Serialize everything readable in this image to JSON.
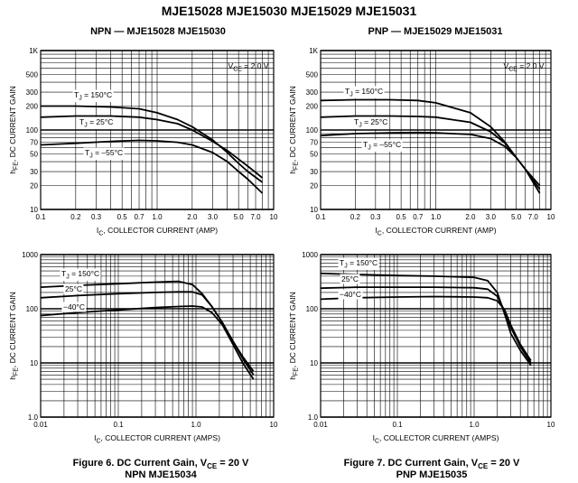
{
  "page": {
    "title": "MJE15028 MJE15030 MJE15029 MJE15031",
    "subtitle_left": "NPN — MJE15028 MJE15030",
    "subtitle_right": "PNP — MJE15029 MJE15031",
    "caption_left_line1": "Figure 6. DC Current Gain, V",
    "caption_left_sub": "CE",
    "caption_left_tail": " = 20 V",
    "caption_left_line2": "NPN MJE15034",
    "caption_right_line1": "Figure 7. DC Current Gain, V",
    "caption_right_sub": "CE",
    "caption_right_tail": " = 20 V",
    "caption_right_line2": "PNP MJE15035"
  },
  "chart_data": [
    {
      "type": "line",
      "scale": "log-log",
      "xlim": [
        0.1,
        10
      ],
      "ylim": [
        10,
        1000
      ],
      "x_ticks": [
        0.1,
        0.2,
        0.3,
        0.5,
        0.7,
        1.0,
        2.0,
        3.0,
        5.0,
        7.0,
        10
      ],
      "x_tick_labels": [
        "0.1",
        "0.2",
        "0.3",
        "0.5",
        "0.7",
        "1.0",
        "2.0",
        "3.0",
        "5.0",
        "7.0",
        "10"
      ],
      "y_ticks": [
        10,
        20,
        30,
        50,
        70,
        100,
        200,
        300,
        500,
        1000
      ],
      "y_tick_labels": [
        "10",
        "20",
        "30",
        "50",
        "70",
        "100",
        "200",
        "300",
        "500",
        "1K"
      ],
      "xlabel": "I",
      "xlabel_sub": "C",
      "xlabel_tail": ", COLLECTOR CURRENT (AMP)",
      "ylabel": "h",
      "ylabel_sub": "FE",
      "ylabel_tail": ", DC CURRENT GAIN",
      "condition": "V",
      "condition_sub": "CE",
      "condition_tail": " = 2.0 V",
      "grid": true,
      "series": [
        {
          "name": "T",
          "name_sub": "J",
          "name_tail": " = 150°C",
          "x": [
            0.1,
            0.2,
            0.4,
            0.7,
            1.0,
            1.5,
            2.0,
            3.0,
            4.0,
            5.0,
            6.0,
            8.0
          ],
          "y": [
            200,
            200,
            195,
            185,
            165,
            135,
            110,
            75,
            52,
            38,
            30,
            22
          ]
        },
        {
          "name": "T",
          "name_sub": "J",
          "name_tail": " = 25°C",
          "x": [
            0.1,
            0.2,
            0.4,
            0.7,
            1.0,
            1.5,
            2.0,
            3.0,
            4.0,
            5.0,
            6.0,
            8.0
          ],
          "y": [
            145,
            150,
            150,
            145,
            135,
            120,
            100,
            72,
            55,
            43,
            35,
            25
          ]
        },
        {
          "name": "T",
          "name_sub": "J",
          "name_tail": " = –55°C",
          "x": [
            0.1,
            0.2,
            0.4,
            0.7,
            1.0,
            1.5,
            2.0,
            3.0,
            4.0,
            5.0,
            6.0,
            8.0
          ],
          "y": [
            65,
            68,
            72,
            74,
            73,
            70,
            65,
            52,
            40,
            30,
            24,
            16
          ]
        }
      ]
    },
    {
      "type": "line",
      "scale": "log-log",
      "xlim": [
        0.1,
        10
      ],
      "ylim": [
        10,
        1000
      ],
      "x_ticks": [
        0.1,
        0.2,
        0.3,
        0.5,
        0.7,
        1.0,
        2.0,
        3.0,
        5.0,
        7.0,
        10
      ],
      "x_tick_labels": [
        "0.1",
        "0.2",
        "0.3",
        "0.5",
        "0.7",
        "1.0",
        "2.0",
        "3.0",
        "5.0",
        "7.0",
        "10"
      ],
      "y_ticks": [
        10,
        20,
        30,
        50,
        70,
        100,
        200,
        300,
        500,
        1000
      ],
      "y_tick_labels": [
        "10",
        "20",
        "30",
        "50",
        "70",
        "100",
        "200",
        "300",
        "500",
        "1K"
      ],
      "xlabel": "I",
      "xlabel_sub": "C",
      "xlabel_tail": ", COLLECTOR CURRENT (AMP)",
      "ylabel": "h",
      "ylabel_sub": "FE",
      "ylabel_tail": ", DC CURRENT GAIN",
      "condition": "V",
      "condition_sub": "CE",
      "condition_tail": " = 2.0 V",
      "grid": true,
      "series": [
        {
          "name": "T",
          "name_sub": "J",
          "name_tail": " = 150°C",
          "x": [
            0.1,
            0.2,
            0.4,
            0.7,
            1.0,
            2.0,
            3.0,
            4.0,
            5.0,
            6.0,
            8.0
          ],
          "y": [
            235,
            240,
            240,
            235,
            220,
            165,
            110,
            70,
            45,
            32,
            20
          ]
        },
        {
          "name": "T",
          "name_sub": "J",
          "name_tail": " = 25°C",
          "x": [
            0.1,
            0.2,
            0.4,
            0.7,
            1.0,
            2.0,
            3.0,
            4.0,
            5.0,
            6.0,
            8.0
          ],
          "y": [
            145,
            150,
            150,
            148,
            145,
            125,
            95,
            68,
            45,
            32,
            18
          ]
        },
        {
          "name": "T",
          "name_sub": "J",
          "name_tail": " = –55°C",
          "x": [
            0.1,
            0.2,
            0.4,
            0.7,
            1.0,
            2.0,
            3.0,
            4.0,
            5.0,
            6.0,
            8.0
          ],
          "y": [
            85,
            90,
            92,
            93,
            92,
            88,
            78,
            62,
            45,
            32,
            16
          ]
        }
      ]
    },
    {
      "type": "line",
      "scale": "log-log",
      "xlim": [
        0.01,
        10
      ],
      "ylim": [
        1.0,
        1000
      ],
      "x_ticks": [
        0.01,
        0.1,
        1.0,
        10
      ],
      "x_tick_labels": [
        "0.01",
        "0.1",
        "1.0",
        "10"
      ],
      "y_ticks": [
        1,
        10,
        100,
        1000
      ],
      "y_tick_labels": [
        "1.0",
        "10",
        "100",
        "1000"
      ],
      "xlabel": "I",
      "xlabel_sub": "C",
      "xlabel_tail": ", COLLECTOR CURRENT (AMPS)",
      "ylabel": "h",
      "ylabel_sub": "FE",
      "ylabel_tail": ", DC CURRENT GAIN",
      "grid": true,
      "series": [
        {
          "name": "T",
          "name_sub": "J",
          "name_tail": " = 150°C",
          "x": [
            0.01,
            0.03,
            0.1,
            0.3,
            0.6,
            0.9,
            1.2,
            1.6,
            2.2,
            3.0,
            4.0,
            5.5
          ],
          "y": [
            250,
            270,
            290,
            310,
            320,
            280,
            190,
            110,
            55,
            25,
            13,
            7
          ]
        },
        {
          "name": "25°C",
          "x": [
            0.01,
            0.03,
            0.1,
            0.3,
            0.6,
            0.9,
            1.2,
            1.6,
            2.2,
            3.0,
            4.0,
            5.5
          ],
          "y": [
            160,
            175,
            190,
            200,
            205,
            205,
            180,
            110,
            55,
            25,
            12,
            6
          ]
        },
        {
          "name": "−40°C",
          "x": [
            0.01,
            0.03,
            0.1,
            0.3,
            0.6,
            0.9,
            1.2,
            1.6,
            2.2,
            3.0,
            4.0,
            5.5
          ],
          "y": [
            75,
            85,
            95,
            105,
            110,
            112,
            108,
            85,
            50,
            22,
            10,
            5
          ]
        }
      ]
    },
    {
      "type": "line",
      "scale": "log-log",
      "xlim": [
        0.01,
        10
      ],
      "ylim": [
        1.0,
        1000
      ],
      "x_ticks": [
        0.01,
        0.1,
        1.0,
        10
      ],
      "x_tick_labels": [
        "0.01",
        "0.1",
        "1.0",
        "10"
      ],
      "y_ticks": [
        1,
        10,
        100,
        1000
      ],
      "y_tick_labels": [
        "1.0",
        "10",
        "100",
        "1000"
      ],
      "xlabel": "I",
      "xlabel_sub": "C",
      "xlabel_tail": ", COLLECTOR CURRENT (AMPS)",
      "ylabel": "h",
      "ylabel_sub": "FE",
      "ylabel_tail": ", DC CURRENT GAIN",
      "grid": true,
      "series": [
        {
          "name": "T",
          "name_sub": "J",
          "name_tail": " = 150°C",
          "x": [
            0.01,
            0.03,
            0.1,
            0.3,
            1.0,
            1.5,
            2.0,
            2.5,
            3.0,
            4.0,
            5.5
          ],
          "y": [
            450,
            430,
            410,
            400,
            380,
            330,
            200,
            80,
            35,
            17,
            9
          ]
        },
        {
          "name": "25°C",
          "x": [
            0.01,
            0.03,
            0.1,
            0.3,
            1.0,
            1.5,
            2.0,
            2.5,
            3.0,
            4.0,
            5.5
          ],
          "y": [
            240,
            250,
            250,
            250,
            245,
            230,
            170,
            90,
            45,
            20,
            10
          ]
        },
        {
          "name": "−40°C",
          "x": [
            0.01,
            0.03,
            0.1,
            0.3,
            1.0,
            1.5,
            2.0,
            2.5,
            3.0,
            4.0,
            5.5
          ],
          "y": [
            150,
            160,
            165,
            168,
            165,
            160,
            140,
            95,
            50,
            22,
            11
          ]
        }
      ]
    }
  ]
}
